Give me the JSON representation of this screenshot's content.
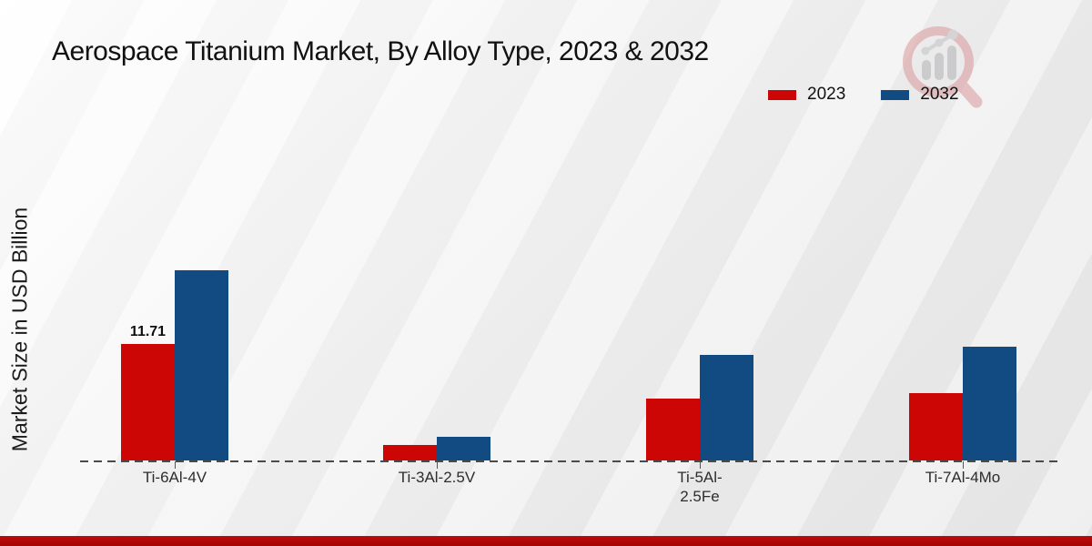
{
  "page": {
    "title": "Aerospace Titanium Market, By Alloy Type, 2023 & 2032"
  },
  "y_axis": {
    "label": "Market Size in USD Billion"
  },
  "legend": {
    "items": [
      {
        "label": "2023",
        "color": "#CC0505"
      },
      {
        "label": "2032",
        "color": "#114B82"
      }
    ]
  },
  "watermark_icon": "market-research-magnifier-logo",
  "footer": {
    "color": "#AE0505"
  },
  "chart_data": {
    "type": "bar",
    "title": "Aerospace Titanium Market, By Alloy Type, 2023 & 2032",
    "xlabel": "",
    "ylabel": "Market Size in USD Billion",
    "categories": [
      "Ti-6Al-4V",
      "Ti-3Al-2.5V",
      "Ti-5Al-2.5Fe",
      "Ti-7Al-4Mo"
    ],
    "categories_lines": [
      [
        "Ti-6Al-4V"
      ],
      [
        "Ti-3Al-2.5V"
      ],
      [
        "Ti-5Al-",
        "2.5Fe"
      ],
      [
        "Ti-7Al-4Mo"
      ]
    ],
    "series": [
      {
        "name": "2023",
        "color": "#CC0505",
        "values": [
          11.71,
          1.6,
          6.2,
          6.8
        ]
      },
      {
        "name": "2032",
        "color": "#114B82",
        "values": [
          19.2,
          2.4,
          10.6,
          11.5
        ]
      }
    ],
    "data_labels": [
      {
        "series": "2023",
        "category_index": 0,
        "text": "11.71"
      }
    ],
    "ylim": [
      0,
      20
    ],
    "grid": false,
    "y_ticks_visible": false,
    "legend_position": "top-right",
    "baseline_style": "dashed"
  }
}
